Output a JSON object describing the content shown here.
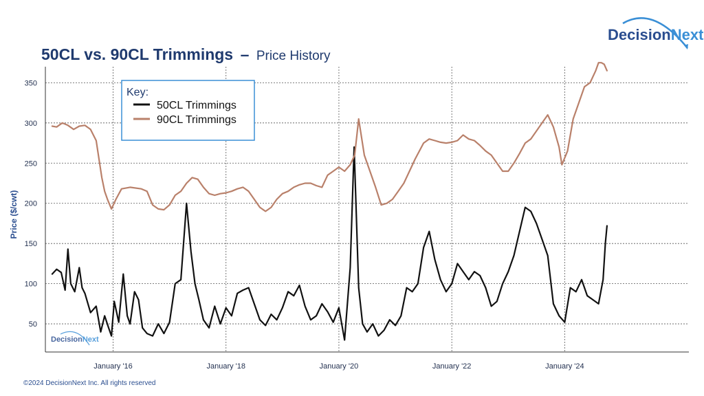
{
  "brand": {
    "name_part1": "Decision",
    "name_part2": "Next"
  },
  "copyright": "©2024 DecisionNext Inc. All rights reserved",
  "colors": {
    "navy": "#1f3a6e",
    "brand_blue": "#2a4d8f",
    "brand_light": "#3a8fd6",
    "key_border": "#3a8fd6",
    "series_50cl": "#111111",
    "series_90cl": "#b9806a",
    "grid": "#555555"
  },
  "chart_data": {
    "type": "line",
    "title": "50CL vs. 90CL Trimmings",
    "title_separator": "–",
    "subtitle": "Price History",
    "xlabel": "",
    "ylabel": "Price  ($/cwt)",
    "ylim": [
      15,
      370
    ],
    "yticks": [
      50,
      100,
      150,
      200,
      250,
      300,
      350
    ],
    "xlim": [
      2014.8,
      2026.2
    ],
    "xticks": [
      {
        "value": 2016.0,
        "label": "January '16"
      },
      {
        "value": 2018.0,
        "label": "January '18"
      },
      {
        "value": 2020.0,
        "label": "January '20"
      },
      {
        "value": 2022.0,
        "label": "January '22"
      },
      {
        "value": 2024.0,
        "label": "January '24"
      }
    ],
    "grid": true,
    "legend": {
      "title": "Key",
      "title_suffix": ":",
      "position": "top-left"
    },
    "series": [
      {
        "name": "50CL Trimmings",
        "x": [
          2014.92,
          2015.0,
          2015.08,
          2015.15,
          2015.2,
          2015.25,
          2015.32,
          2015.4,
          2015.45,
          2015.5,
          2015.55,
          2015.6,
          2015.7,
          2015.78,
          2015.85,
          2015.92,
          2015.97,
          2016.02,
          2016.1,
          2016.18,
          2016.25,
          2016.3,
          2016.38,
          2016.45,
          2016.52,
          2016.6,
          2016.7,
          2016.8,
          2016.9,
          2017.0,
          2017.1,
          2017.2,
          2017.3,
          2017.38,
          2017.45,
          2017.52,
          2017.6,
          2017.7,
          2017.8,
          2017.9,
          2018.0,
          2018.1,
          2018.2,
          2018.3,
          2018.4,
          2018.5,
          2018.6,
          2018.7,
          2018.8,
          2018.9,
          2019.0,
          2019.1,
          2019.2,
          2019.3,
          2019.4,
          2019.5,
          2019.6,
          2019.7,
          2019.8,
          2019.9,
          2020.0,
          2020.1,
          2020.2,
          2020.27,
          2020.35,
          2020.42,
          2020.5,
          2020.6,
          2020.7,
          2020.8,
          2020.9,
          2021.0,
          2021.1,
          2021.2,
          2021.3,
          2021.4,
          2021.5,
          2021.6,
          2021.7,
          2021.8,
          2021.9,
          2022.0,
          2022.1,
          2022.2,
          2022.3,
          2022.4,
          2022.5,
          2022.6,
          2022.7,
          2022.8,
          2022.9,
          2023.0,
          2023.1,
          2023.2,
          2023.3,
          2023.4,
          2023.5,
          2023.6,
          2023.7,
          2023.8,
          2023.9,
          2024.0,
          2024.1,
          2024.2,
          2024.3,
          2024.4,
          2024.5,
          2024.6,
          2024.68,
          2024.72,
          2024.75
        ],
        "values": [
          112,
          118,
          114,
          92,
          143,
          100,
          90,
          120,
          95,
          88,
          76,
          64,
          72,
          40,
          60,
          45,
          35,
          78,
          52,
          112,
          60,
          50,
          90,
          80,
          45,
          38,
          35,
          50,
          38,
          52,
          100,
          105,
          200,
          140,
          100,
          80,
          55,
          45,
          72,
          50,
          70,
          60,
          88,
          92,
          95,
          75,
          55,
          48,
          62,
          55,
          70,
          90,
          85,
          98,
          72,
          55,
          60,
          75,
          65,
          52,
          70,
          30,
          120,
          270,
          95,
          50,
          40,
          50,
          35,
          42,
          55,
          48,
          60,
          95,
          90,
          100,
          145,
          165,
          130,
          105,
          90,
          100,
          125,
          115,
          105,
          115,
          110,
          95,
          72,
          78,
          100,
          115,
          135,
          165,
          195,
          190,
          175,
          155,
          135,
          75,
          60,
          52,
          95,
          90,
          105,
          85,
          80,
          75,
          105,
          150,
          172
        ]
      },
      {
        "name": "90CL Trimmings",
        "x": [
          2014.92,
          2015.0,
          2015.1,
          2015.2,
          2015.3,
          2015.4,
          2015.5,
          2015.6,
          2015.7,
          2015.75,
          2015.8,
          2015.85,
          2015.9,
          2015.97,
          2016.05,
          2016.15,
          2016.3,
          2016.5,
          2016.6,
          2016.7,
          2016.8,
          2016.9,
          2017.0,
          2017.1,
          2017.2,
          2017.3,
          2017.4,
          2017.5,
          2017.6,
          2017.7,
          2017.8,
          2017.9,
          2018.0,
          2018.1,
          2018.2,
          2018.3,
          2018.4,
          2018.5,
          2018.6,
          2018.7,
          2018.8,
          2018.9,
          2019.0,
          2019.1,
          2019.2,
          2019.3,
          2019.4,
          2019.5,
          2019.6,
          2019.7,
          2019.8,
          2019.9,
          2020.0,
          2020.1,
          2020.2,
          2020.28,
          2020.35,
          2020.45,
          2020.55,
          2020.65,
          2020.75,
          2020.85,
          2020.95,
          2021.05,
          2021.15,
          2021.25,
          2021.35,
          2021.5,
          2021.6,
          2021.7,
          2021.8,
          2021.9,
          2022.0,
          2022.1,
          2022.2,
          2022.3,
          2022.4,
          2022.5,
          2022.6,
          2022.7,
          2022.8,
          2022.9,
          2023.0,
          2023.1,
          2023.2,
          2023.3,
          2023.4,
          2023.5,
          2023.6,
          2023.7,
          2023.8,
          2023.9,
          2023.95,
          2024.05,
          2024.15,
          2024.25,
          2024.35,
          2024.45,
          2024.55,
          2024.6,
          2024.65,
          2024.7,
          2024.75
        ],
        "values": [
          296,
          295,
          300,
          297,
          292,
          296,
          297,
          292,
          278,
          255,
          232,
          215,
          205,
          193,
          205,
          218,
          220,
          218,
          215,
          198,
          193,
          192,
          198,
          210,
          215,
          225,
          232,
          230,
          220,
          212,
          210,
          212,
          213,
          215,
          218,
          220,
          215,
          205,
          195,
          190,
          195,
          205,
          212,
          215,
          220,
          223,
          225,
          225,
          222,
          220,
          235,
          240,
          245,
          240,
          248,
          260,
          305,
          260,
          240,
          220,
          198,
          200,
          205,
          215,
          225,
          240,
          255,
          275,
          280,
          278,
          276,
          275,
          276,
          278,
          285,
          280,
          278,
          272,
          265,
          260,
          250,
          240,
          240,
          250,
          262,
          275,
          280,
          290,
          300,
          310,
          295,
          270,
          248,
          265,
          305,
          325,
          345,
          350,
          365,
          375,
          375,
          373,
          365
        ]
      }
    ]
  }
}
